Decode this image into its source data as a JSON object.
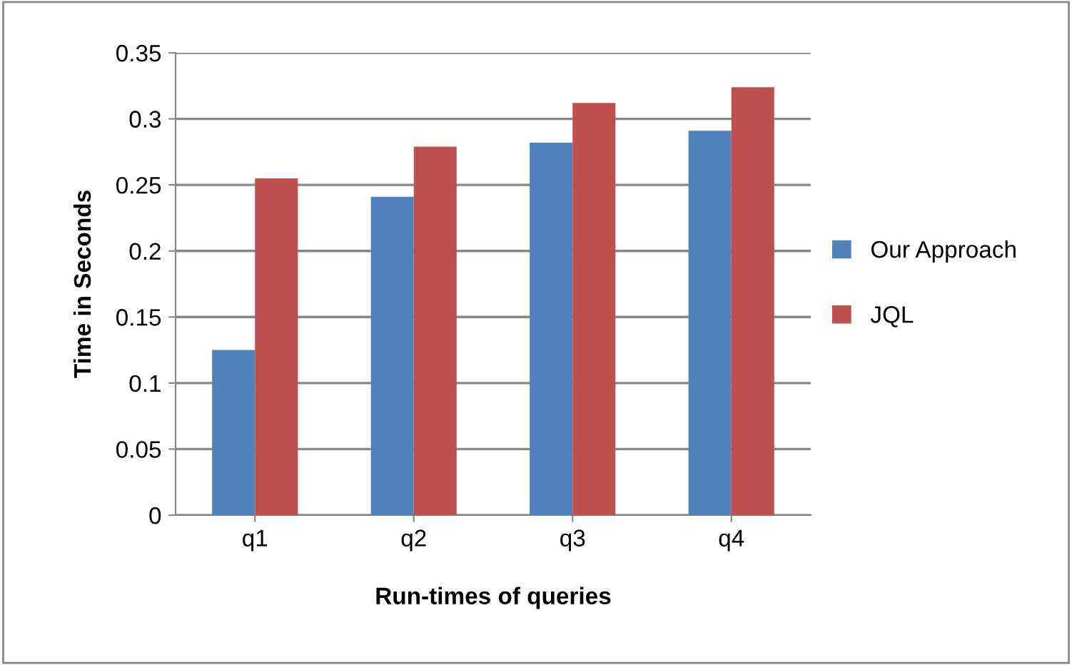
{
  "chart_data": {
    "type": "bar",
    "xlabel": "Run-times of queries",
    "ylabel": "Time in Seconds",
    "categories": [
      "q1",
      "q2",
      "q3",
      "q4"
    ],
    "series": [
      {
        "name": "Our Approach",
        "color": "#4f81bd",
        "values": [
          0.125,
          0.241,
          0.282,
          0.291
        ]
      },
      {
        "name": "JQL",
        "color": "#c0504d",
        "values": [
          0.255,
          0.279,
          0.312,
          0.324
        ]
      }
    ],
    "ylim": [
      0,
      0.35
    ],
    "yticks": [
      0,
      0.05,
      0.1,
      0.15,
      0.2,
      0.25,
      0.3,
      0.35
    ],
    "grid": "y",
    "legend": "right"
  }
}
